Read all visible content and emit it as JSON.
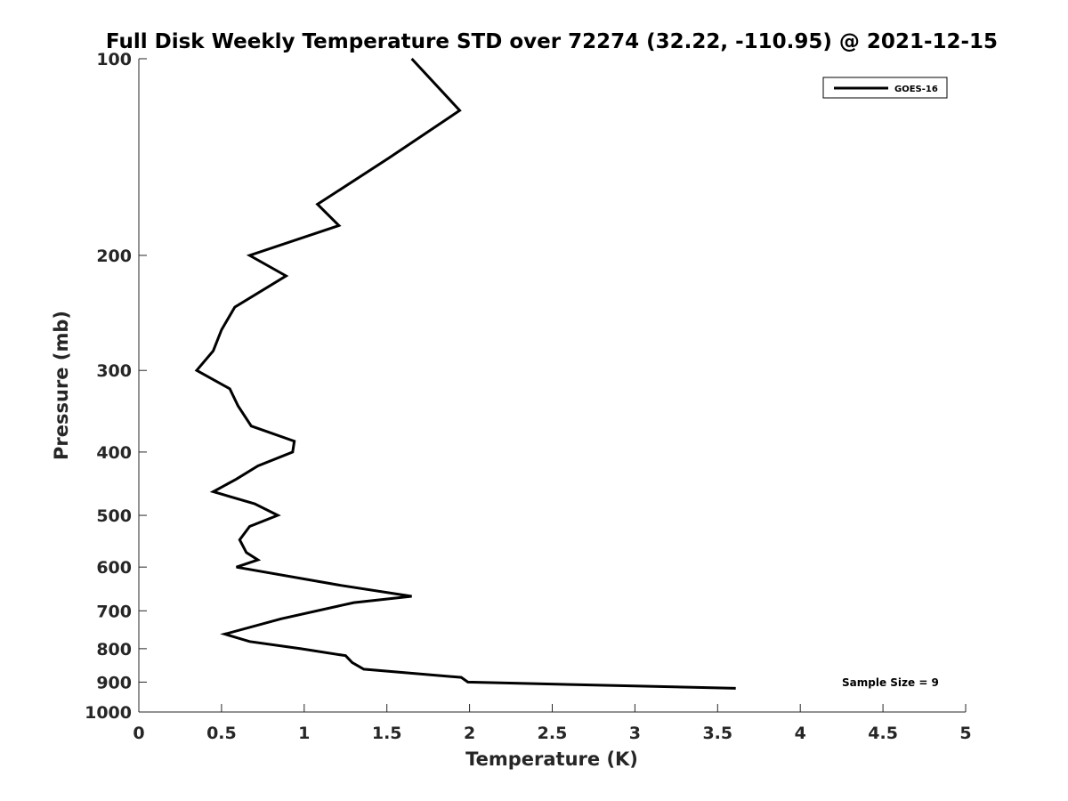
{
  "chart_data": {
    "type": "line",
    "title": "Full Disk Weekly Temperature STD over 72274 (32.22, -110.95) @ 2021-12-15",
    "xlabel": "Temperature (K)",
    "ylabel": "Pressure (mb)",
    "xlim": [
      0,
      5
    ],
    "ylim": [
      100,
      1000
    ],
    "y_scale": "log",
    "y_reversed": true,
    "x_ticks": [
      "0",
      "0.5",
      "1",
      "1.5",
      "2",
      "2.5",
      "3",
      "3.5",
      "4",
      "4.5",
      "5"
    ],
    "y_ticks": [
      "100",
      "200",
      "300",
      "400",
      "500",
      "600",
      "700",
      "800",
      "900",
      "1000"
    ],
    "grid": false,
    "legend_position": "top-right",
    "series": [
      {
        "name": "GOES-16",
        "color": "#000000",
        "points": [
          {
            "x": 1.65,
            "p": 100
          },
          {
            "x": 1.94,
            "p": 120
          },
          {
            "x": 1.51,
            "p": 142
          },
          {
            "x": 1.08,
            "p": 167
          },
          {
            "x": 1.21,
            "p": 180
          },
          {
            "x": 0.67,
            "p": 200
          },
          {
            "x": 0.89,
            "p": 215
          },
          {
            "x": 0.58,
            "p": 240
          },
          {
            "x": 0.5,
            "p": 260
          },
          {
            "x": 0.45,
            "p": 280
          },
          {
            "x": 0.35,
            "p": 300
          },
          {
            "x": 0.55,
            "p": 320
          },
          {
            "x": 0.6,
            "p": 340
          },
          {
            "x": 0.68,
            "p": 365
          },
          {
            "x": 0.94,
            "p": 385
          },
          {
            "x": 0.93,
            "p": 400
          },
          {
            "x": 0.72,
            "p": 420
          },
          {
            "x": 0.59,
            "p": 440
          },
          {
            "x": 0.45,
            "p": 460
          },
          {
            "x": 0.7,
            "p": 480
          },
          {
            "x": 0.84,
            "p": 500
          },
          {
            "x": 0.67,
            "p": 520
          },
          {
            "x": 0.61,
            "p": 545
          },
          {
            "x": 0.65,
            "p": 570
          },
          {
            "x": 0.72,
            "p": 585
          },
          {
            "x": 0.59,
            "p": 600
          },
          {
            "x": 1.22,
            "p": 640
          },
          {
            "x": 1.65,
            "p": 665
          },
          {
            "x": 1.3,
            "p": 680
          },
          {
            "x": 0.86,
            "p": 720
          },
          {
            "x": 0.52,
            "p": 760
          },
          {
            "x": 0.67,
            "p": 780
          },
          {
            "x": 0.98,
            "p": 800
          },
          {
            "x": 1.25,
            "p": 820
          },
          {
            "x": 1.29,
            "p": 840
          },
          {
            "x": 1.36,
            "p": 860
          },
          {
            "x": 1.95,
            "p": 885
          },
          {
            "x": 1.99,
            "p": 900
          },
          {
            "x": 3.61,
            "p": 920
          }
        ]
      }
    ],
    "annotations": [
      {
        "text": "Sample Size = 9",
        "position": "bottom-right"
      }
    ]
  }
}
